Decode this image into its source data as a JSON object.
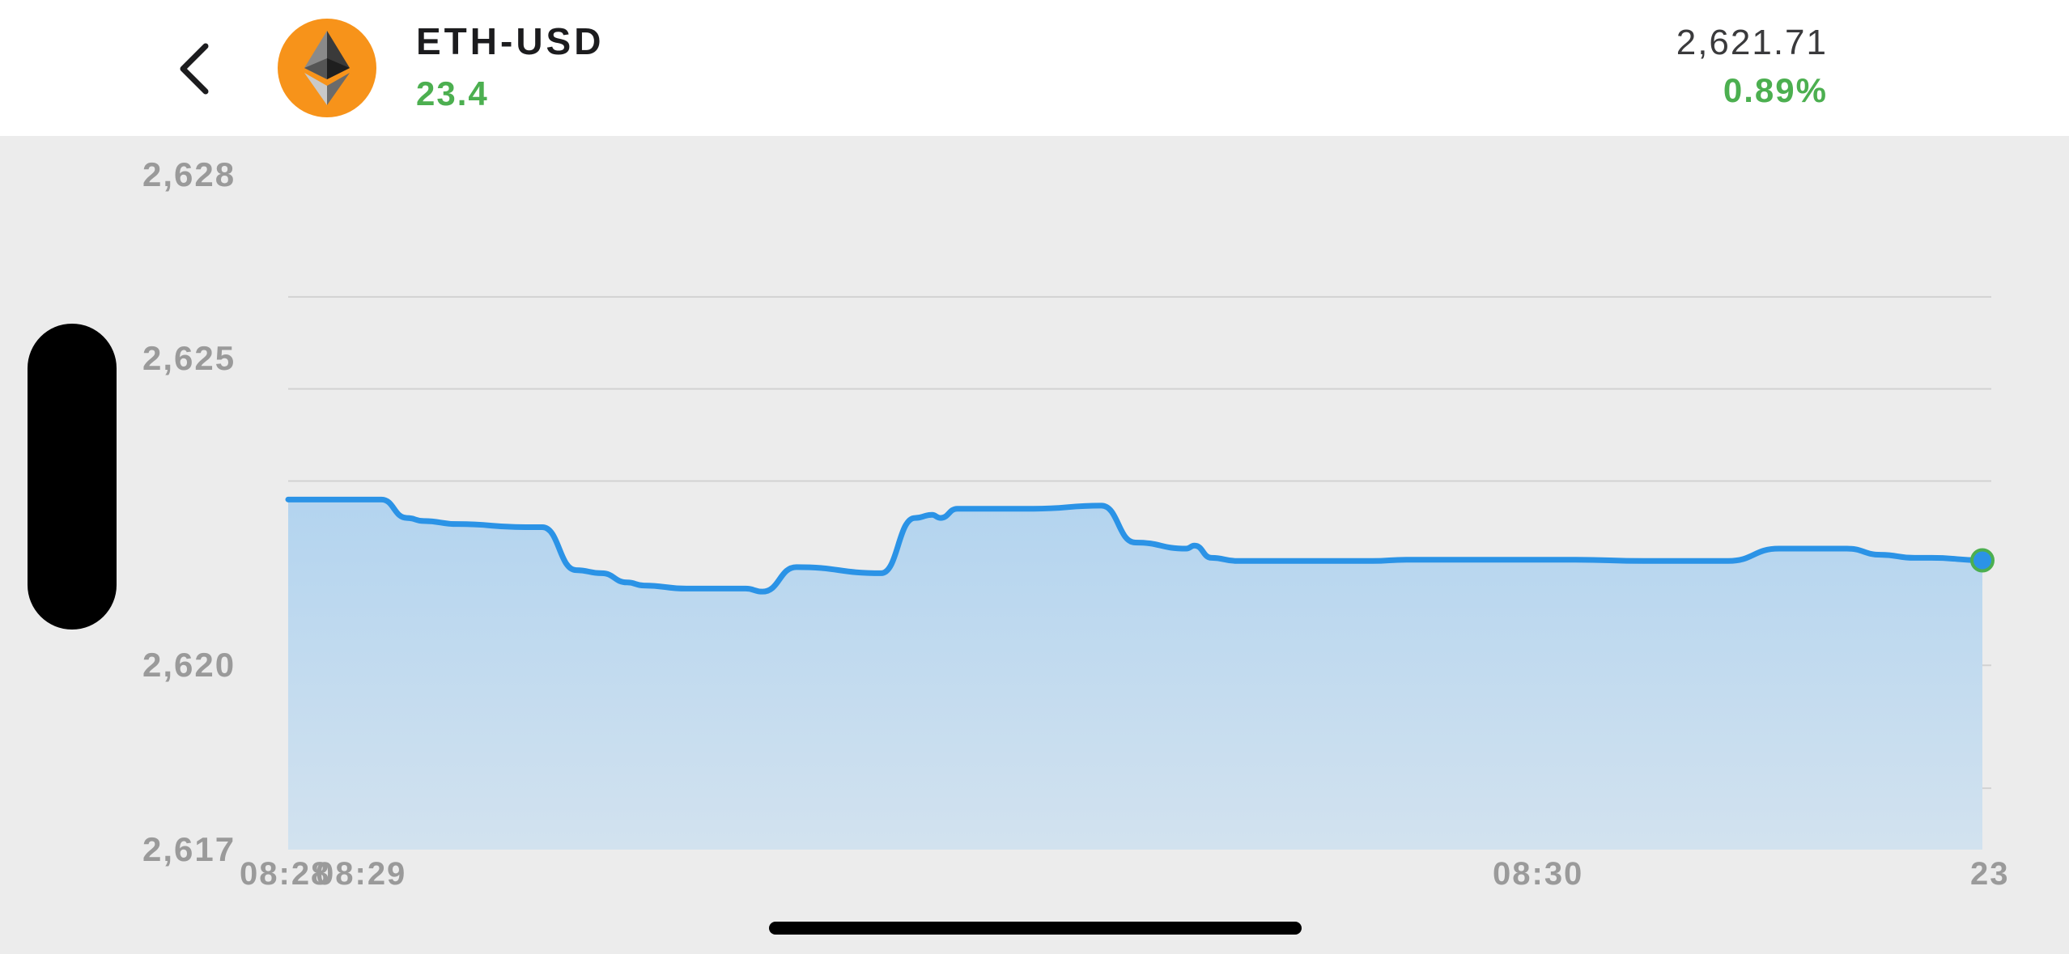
{
  "header": {
    "back_icon": "chevron-left-icon",
    "coin_icon": "ethereum-icon",
    "coin_color": "#f7931a",
    "pair": "ETH-USD",
    "change_value": "23.4",
    "price": "2,621.71",
    "change_percent": "0.89%",
    "positive_color": "#4caf50"
  },
  "chart_data": {
    "type": "area",
    "y_tick_labels": [
      "2,628",
      "2,625",
      "2,620",
      "2,617"
    ],
    "x_tick_labels": [
      "08:28",
      "08:29",
      "08:30",
      "23"
    ],
    "ylim": [
      2617,
      2628
    ],
    "grid": true,
    "line_color": "#2b93e6",
    "fill_color": "#b3d4ef",
    "series": [
      {
        "x": [
          0,
          0.03,
          0.055,
          0.07,
          0.08,
          0.1,
          0.14,
          0.15,
          0.17,
          0.185,
          0.2,
          0.21,
          0.235,
          0.27,
          0.28,
          0.3,
          0.35,
          0.37,
          0.38,
          0.385,
          0.395,
          0.41,
          0.42,
          0.43,
          0.44,
          0.48,
          0.5,
          0.53,
          0.535,
          0.545,
          0.56,
          0.575,
          0.59,
          0.61,
          0.64,
          0.66,
          0.7,
          0.73,
          0.76,
          0.8,
          0.83,
          0.85,
          0.88,
          0.89,
          0.9,
          0.92,
          0.94,
          0.96,
          0.97,
          1.0
        ],
        "y": [
          2622.7,
          2622.7,
          2622.7,
          2622.4,
          2622.35,
          2622.3,
          2622.25,
          2622.25,
          2621.55,
          2621.5,
          2621.35,
          2621.3,
          2621.25,
          2621.25,
          2621.2,
          2621.6,
          2621.5,
          2622.4,
          2622.45,
          2622.4,
          2622.55,
          2622.55,
          2622.55,
          2622.55,
          2622.55,
          2622.6,
          2622.0,
          2621.9,
          2621.95,
          2621.75,
          2621.7,
          2621.7,
          2621.7,
          2621.7,
          2621.7,
          2621.72,
          2621.72,
          2621.72,
          2621.72,
          2621.7,
          2621.7,
          2621.7,
          2621.9,
          2621.9,
          2621.9,
          2621.9,
          2621.8,
          2621.75,
          2621.75,
          2621.71
        ]
      }
    ],
    "last_point_color": "#2b93e6",
    "last_point_ring_color": "#4caf50"
  }
}
